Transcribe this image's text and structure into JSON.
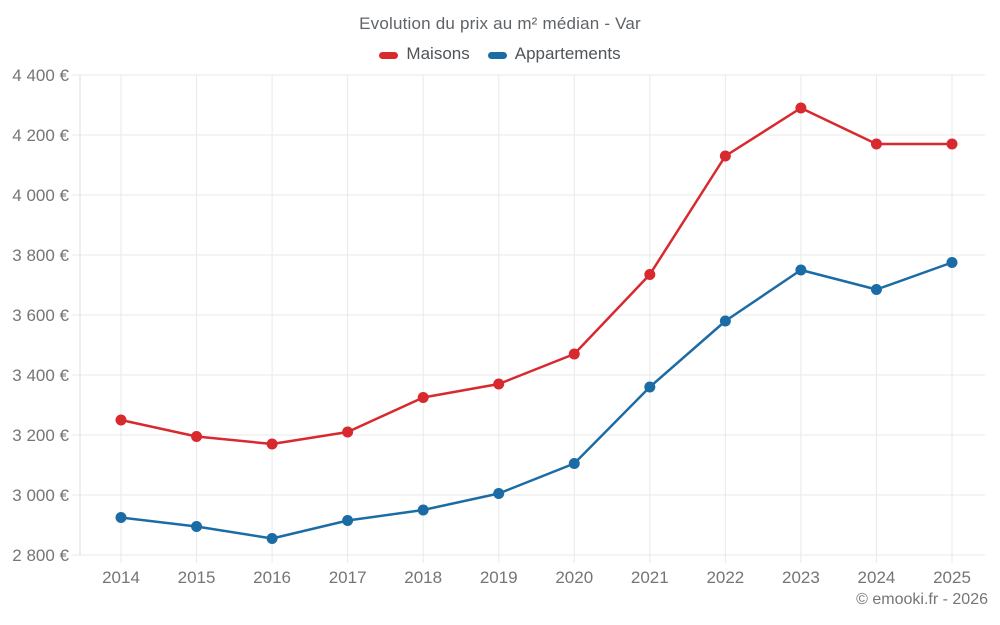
{
  "header": {
    "title": "Evolution du prix au m² médian - Var"
  },
  "footer": {
    "credit": "© emooki.fr - 2026"
  },
  "chart_data": {
    "type": "line",
    "title": "Evolution du prix au m² médian - Var",
    "categories": [
      "2014",
      "2015",
      "2016",
      "2017",
      "2018",
      "2019",
      "2020",
      "2021",
      "2022",
      "2023",
      "2024",
      "2025"
    ],
    "series": [
      {
        "name": "Maisons",
        "color": "#d8292f",
        "values": [
          3250,
          3195,
          3170,
          3210,
          3325,
          3370,
          3470,
          3735,
          4130,
          4290,
          4170,
          4170
        ]
      },
      {
        "name": "Appartements",
        "color": "#1b6ca5",
        "values": [
          2925,
          2895,
          2855,
          2915,
          2950,
          3005,
          3105,
          3360,
          3580,
          3750,
          3685,
          3775
        ]
      }
    ],
    "ylim": [
      2800,
      4400
    ],
    "y_ticks": [
      {
        "value": 2800,
        "label": "2 800 €"
      },
      {
        "value": 3000,
        "label": "3 000 €"
      },
      {
        "value": 3200,
        "label": "3 200 €"
      },
      {
        "value": 3400,
        "label": "3 400 €"
      },
      {
        "value": 3600,
        "label": "3 600 €"
      },
      {
        "value": 3800,
        "label": "3 800 €"
      },
      {
        "value": 4000,
        "label": "4 000 €"
      },
      {
        "value": 4200,
        "label": "4 200 €"
      },
      {
        "value": 4400,
        "label": "4 400 €"
      }
    ],
    "grid": true,
    "legend_position": "top",
    "colors": {
      "grid": "#e9e9e9",
      "axis": "#dcdcdc",
      "tick_label": "#757575"
    }
  }
}
